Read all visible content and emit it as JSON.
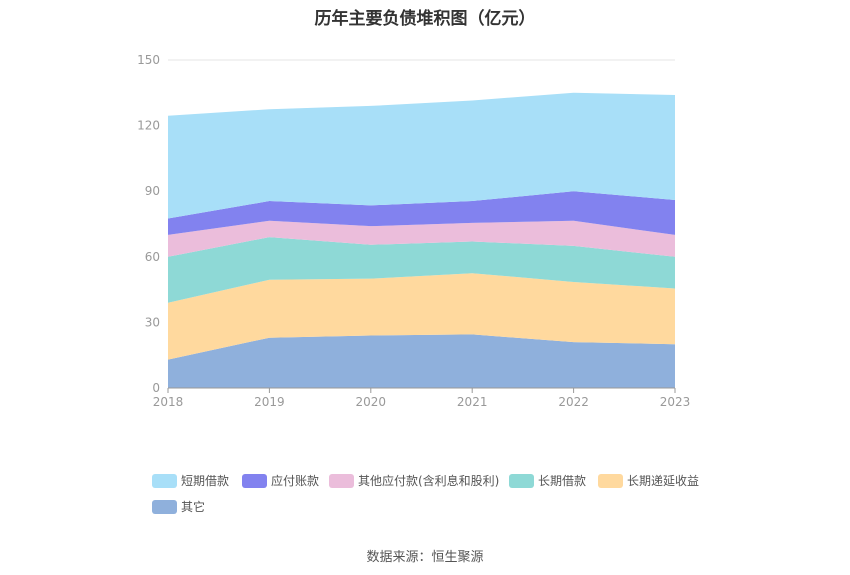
{
  "chart_data": {
    "type": "area",
    "stacked": true,
    "title": "历年主要负债堆积图（亿元）",
    "categories": [
      "2018",
      "2019",
      "2020",
      "2021",
      "2022",
      "2023"
    ],
    "ylim": [
      0,
      150
    ],
    "yticks": [
      "0",
      "30",
      "60",
      "90",
      "120",
      "150"
    ],
    "grid": true,
    "legend_position": "bottom",
    "series": [
      {
        "name": "其它",
        "color": "#8fb0dc",
        "values": [
          13,
          23,
          24,
          24.5,
          21,
          20
        ]
      },
      {
        "name": "长期递延收益",
        "color": "#ffd99e",
        "values": [
          26,
          26.5,
          26,
          28,
          27.5,
          25.5
        ]
      },
      {
        "name": "长期借款",
        "color": "#8ed9d6",
        "values": [
          21,
          19.5,
          15.5,
          14.5,
          16.5,
          14.5
        ]
      },
      {
        "name": "其他应付款(含利息和股利)",
        "color": "#ebbddb",
        "values": [
          10,
          7.5,
          8.5,
          8.5,
          11.5,
          10
        ]
      },
      {
        "name": "应付账款",
        "color": "#8282ef",
        "values": [
          7.5,
          9,
          9.5,
          10,
          13.5,
          16
        ]
      },
      {
        "name": "短期借款",
        "color": "#a8dff8",
        "values": [
          47,
          42,
          45.5,
          46,
          45,
          48
        ]
      }
    ]
  },
  "legend_order": [
    {
      "name": "短期借款",
      "color": "#a8dff8"
    },
    {
      "name": "应付账款",
      "color": "#8282ef"
    },
    {
      "name": "其他应付款(含利息和股利)",
      "color": "#ebbddb"
    },
    {
      "name": "长期借款",
      "color": "#8ed9d6"
    },
    {
      "name": "长期递延收益",
      "color": "#ffd99e"
    },
    {
      "name": "其它",
      "color": "#8fb0dc"
    }
  ],
  "source_note": "数据来源：恒生聚源"
}
